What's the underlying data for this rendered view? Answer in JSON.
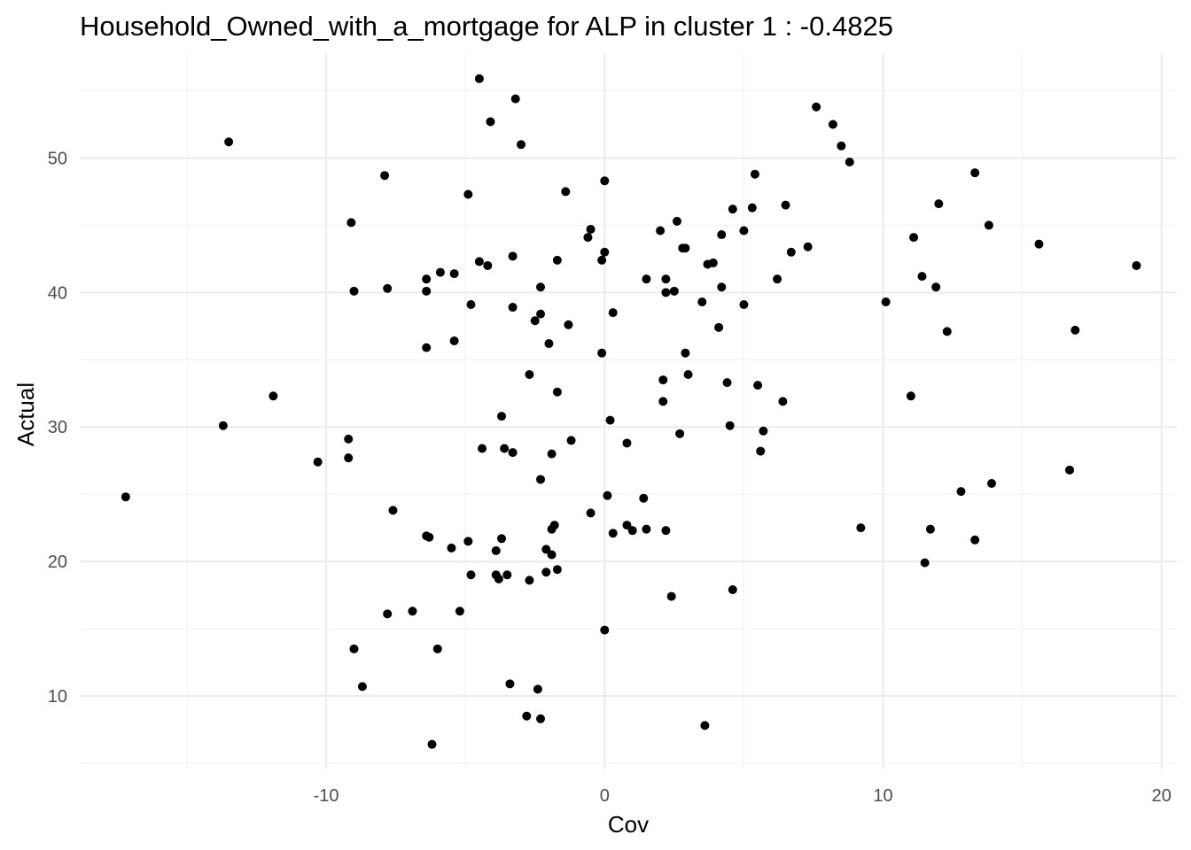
{
  "chart_data": {
    "type": "scatter",
    "title": "Household_Owned_with_a_mortgage for ALP in cluster 1 : -0.4825",
    "xlabel": "Cov",
    "ylabel": "Actual",
    "xlim": [
      -18.85,
      20.55
    ],
    "ylim": [
      4.6,
      57.8
    ],
    "x_ticks": [
      -10,
      0,
      10,
      20
    ],
    "x_tick_labels": [
      "-10",
      "0",
      "10",
      "20"
    ],
    "x_minor_ticks": [
      -15,
      -5,
      5,
      15
    ],
    "y_ticks": [
      10,
      20,
      30,
      40,
      50
    ],
    "y_tick_labels": [
      "10",
      "20",
      "30",
      "40",
      "50"
    ],
    "y_minor_ticks": [
      5,
      15,
      25,
      35,
      45,
      55
    ],
    "grid": true,
    "point_color": "#000000",
    "background": "#ffffff",
    "points": [
      [
        -17.2,
        24.8
      ],
      [
        -13.7,
        30.1
      ],
      [
        -13.5,
        51.2
      ],
      [
        -11.9,
        32.3
      ],
      [
        -10.3,
        27.4
      ],
      [
        -9.2,
        29.1
      ],
      [
        -9.2,
        27.7
      ],
      [
        -9.1,
        45.2
      ],
      [
        -9.0,
        40.1
      ],
      [
        -9.0,
        13.5
      ],
      [
        -8.7,
        10.7
      ],
      [
        -7.9,
        48.7
      ],
      [
        -7.8,
        40.3
      ],
      [
        -7.8,
        16.1
      ],
      [
        -7.6,
        23.8
      ],
      [
        -6.9,
        16.3
      ],
      [
        -6.4,
        41.0
      ],
      [
        -6.4,
        40.1
      ],
      [
        -6.4,
        35.9
      ],
      [
        -6.4,
        21.9
      ],
      [
        -6.3,
        21.8
      ],
      [
        -6.2,
        6.4
      ],
      [
        -6.0,
        13.5
      ],
      [
        -5.9,
        41.5
      ],
      [
        -5.5,
        21.0
      ],
      [
        -5.4,
        41.4
      ],
      [
        -5.4,
        36.4
      ],
      [
        -5.2,
        16.3
      ],
      [
        -4.9,
        47.3
      ],
      [
        -4.9,
        21.5
      ],
      [
        -4.8,
        39.1
      ],
      [
        -4.8,
        19.0
      ],
      [
        -4.5,
        55.9
      ],
      [
        -4.5,
        42.3
      ],
      [
        -4.4,
        28.4
      ],
      [
        -4.2,
        42.0
      ],
      [
        -4.1,
        52.7
      ],
      [
        -3.9,
        20.8
      ],
      [
        -3.9,
        19.0
      ],
      [
        -3.8,
        18.7
      ],
      [
        -3.7,
        30.8
      ],
      [
        -3.7,
        21.7
      ],
      [
        -3.6,
        28.4
      ],
      [
        -3.5,
        19.0
      ],
      [
        -3.4,
        10.9
      ],
      [
        -3.3,
        42.7
      ],
      [
        -3.3,
        38.9
      ],
      [
        -3.3,
        28.1
      ],
      [
        -3.2,
        54.4
      ],
      [
        -3.0,
        51.0
      ],
      [
        -2.8,
        8.5
      ],
      [
        -2.7,
        33.9
      ],
      [
        -2.7,
        18.6
      ],
      [
        -2.5,
        37.9
      ],
      [
        -2.4,
        10.5
      ],
      [
        -2.3,
        40.4
      ],
      [
        -2.3,
        38.4
      ],
      [
        -2.3,
        26.1
      ],
      [
        -2.3,
        8.3
      ],
      [
        -2.1,
        20.9
      ],
      [
        -2.1,
        19.2
      ],
      [
        -2.0,
        36.2
      ],
      [
        -1.9,
        28.0
      ],
      [
        -1.9,
        22.4
      ],
      [
        -1.9,
        20.5
      ],
      [
        -1.8,
        22.7
      ],
      [
        -1.7,
        42.4
      ],
      [
        -1.7,
        32.6
      ],
      [
        -1.7,
        19.4
      ],
      [
        -1.4,
        47.5
      ],
      [
        -1.3,
        37.6
      ],
      [
        -1.2,
        29.0
      ],
      [
        -0.6,
        44.1
      ],
      [
        -0.5,
        44.7
      ],
      [
        -0.5,
        23.6
      ],
      [
        -0.1,
        42.4
      ],
      [
        -0.1,
        35.5
      ],
      [
        0.0,
        48.3
      ],
      [
        0.0,
        43.0
      ],
      [
        0.0,
        14.9
      ],
      [
        0.1,
        24.9
      ],
      [
        0.2,
        30.5
      ],
      [
        0.3,
        38.5
      ],
      [
        0.3,
        22.1
      ],
      [
        0.8,
        22.7
      ],
      [
        0.8,
        28.8
      ],
      [
        1.0,
        22.3
      ],
      [
        1.4,
        24.7
      ],
      [
        1.5,
        41.0
      ],
      [
        1.5,
        22.4
      ],
      [
        2.0,
        44.6
      ],
      [
        2.1,
        33.5
      ],
      [
        2.1,
        31.9
      ],
      [
        2.2,
        41.0
      ],
      [
        2.2,
        40.0
      ],
      [
        2.2,
        22.3
      ],
      [
        2.4,
        17.4
      ],
      [
        2.5,
        40.1
      ],
      [
        2.6,
        45.3
      ],
      [
        2.7,
        29.5
      ],
      [
        2.8,
        43.3
      ],
      [
        2.9,
        43.3
      ],
      [
        2.9,
        35.5
      ],
      [
        3.0,
        33.9
      ],
      [
        3.5,
        39.3
      ],
      [
        3.6,
        7.8
      ],
      [
        3.7,
        42.1
      ],
      [
        3.9,
        42.2
      ],
      [
        4.1,
        37.4
      ],
      [
        4.2,
        44.3
      ],
      [
        4.2,
        40.4
      ],
      [
        4.4,
        33.3
      ],
      [
        4.5,
        30.1
      ],
      [
        4.6,
        46.2
      ],
      [
        4.6,
        17.9
      ],
      [
        5.0,
        44.6
      ],
      [
        5.0,
        39.1
      ],
      [
        5.3,
        46.3
      ],
      [
        5.4,
        48.8
      ],
      [
        5.5,
        33.1
      ],
      [
        5.6,
        28.2
      ],
      [
        5.7,
        29.7
      ],
      [
        6.2,
        41.0
      ],
      [
        6.4,
        31.9
      ],
      [
        6.5,
        46.5
      ],
      [
        6.7,
        43.0
      ],
      [
        7.3,
        43.4
      ],
      [
        7.6,
        53.8
      ],
      [
        8.2,
        52.5
      ],
      [
        8.5,
        50.9
      ],
      [
        8.8,
        49.7
      ],
      [
        9.2,
        22.5
      ],
      [
        10.1,
        39.3
      ],
      [
        11.0,
        32.3
      ],
      [
        11.1,
        44.1
      ],
      [
        11.4,
        41.2
      ],
      [
        11.5,
        19.9
      ],
      [
        11.7,
        22.4
      ],
      [
        11.9,
        40.4
      ],
      [
        12.0,
        46.6
      ],
      [
        12.3,
        37.1
      ],
      [
        12.8,
        25.2
      ],
      [
        13.3,
        21.6
      ],
      [
        13.3,
        48.9
      ],
      [
        13.8,
        45.0
      ],
      [
        13.9,
        25.8
      ],
      [
        15.6,
        43.6
      ],
      [
        16.7,
        26.8
      ],
      [
        16.9,
        37.2
      ],
      [
        19.1,
        42.0
      ]
    ]
  }
}
